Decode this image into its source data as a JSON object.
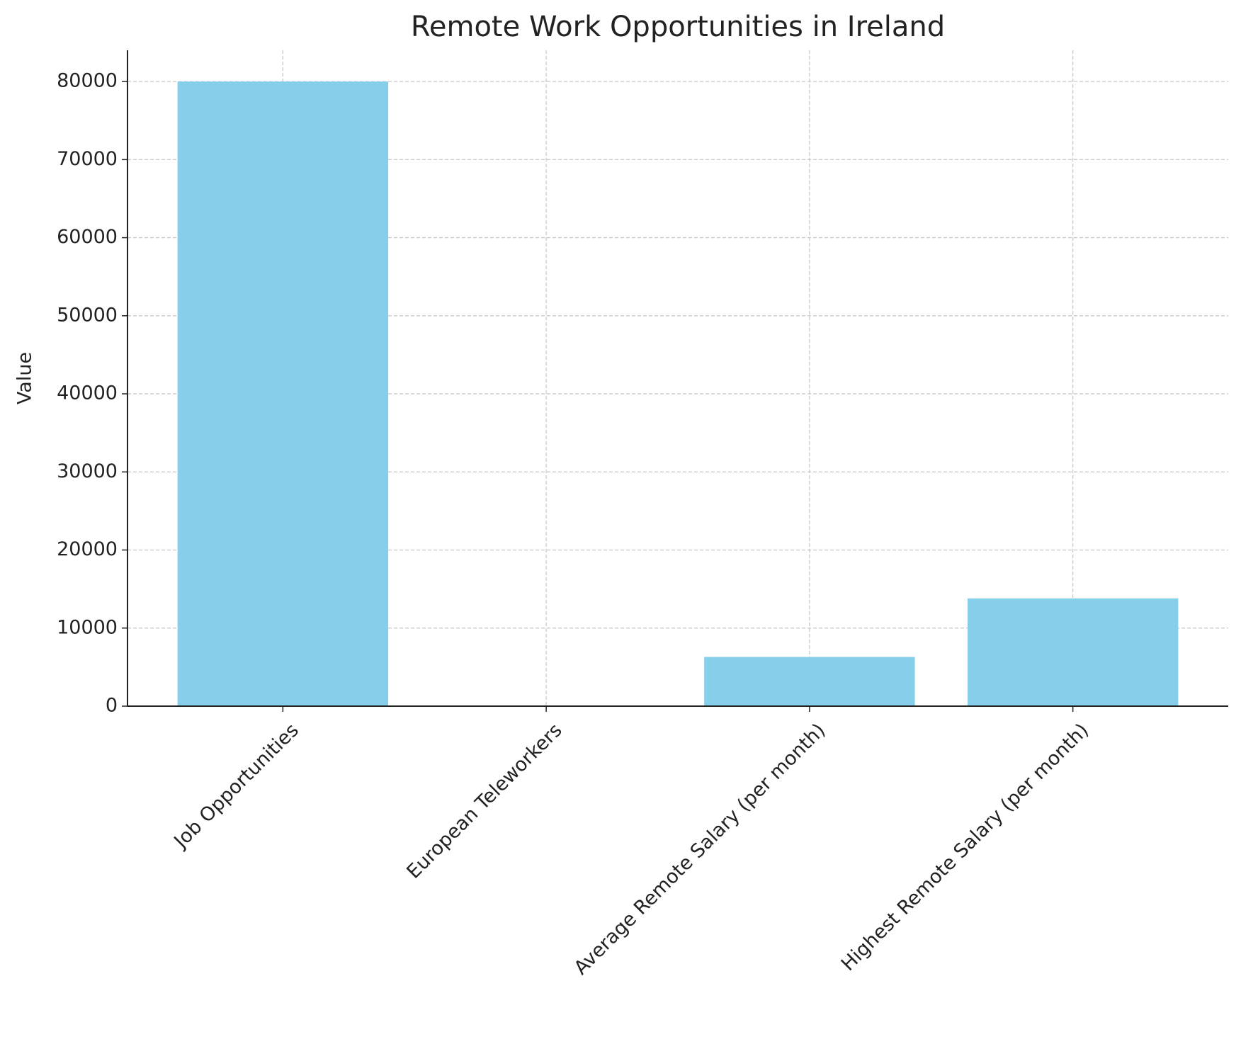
{
  "chart_data": {
    "type": "bar",
    "title": "Remote Work Opportunities in Ireland",
    "ylabel": "Value",
    "categories": [
      "Job Opportunities",
      "European Teleworkers",
      "Average Remote Salary (per month)",
      "Highest Remote Salary (per month)"
    ],
    "values": [
      80000,
      0,
      6300,
      13800
    ],
    "color": "#87ceeb",
    "ylim": [
      0,
      84000
    ],
    "yticks": [
      0,
      10000,
      20000,
      30000,
      40000,
      50000,
      60000,
      70000,
      80000
    ],
    "grid": true
  }
}
